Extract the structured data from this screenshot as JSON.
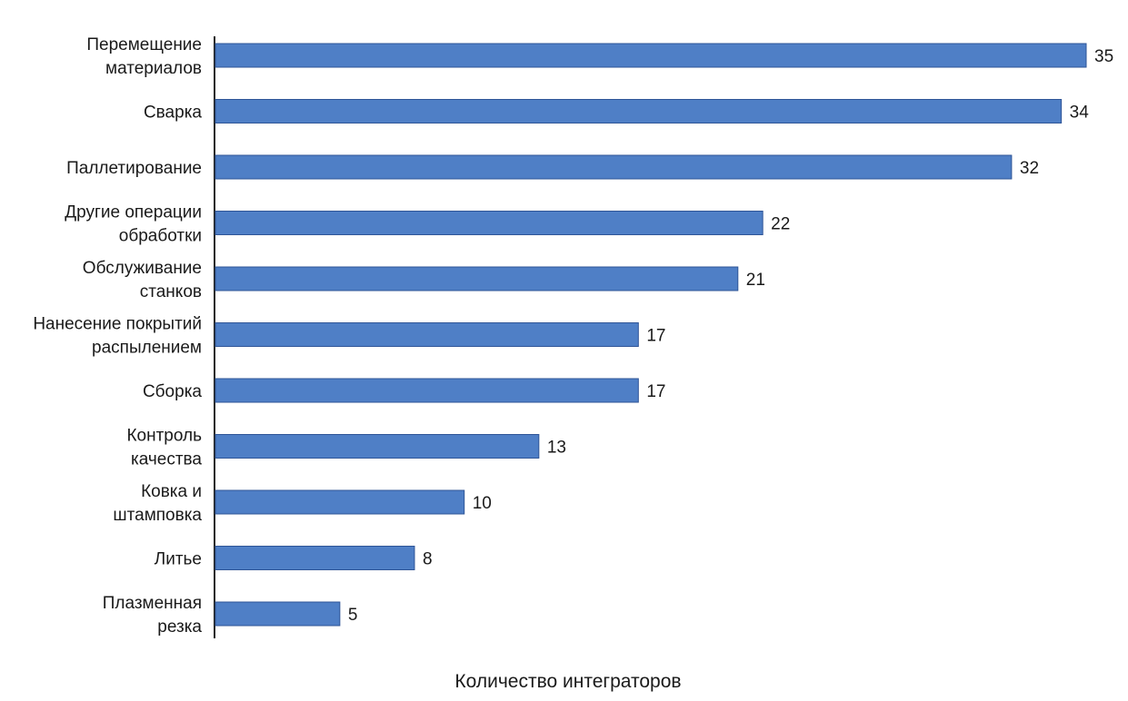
{
  "chart_data": {
    "type": "bar",
    "orientation": "horizontal",
    "categories": [
      [
        "Перемещение",
        "материалов"
      ],
      [
        "Сварка"
      ],
      [
        "Паллетирование"
      ],
      [
        "Другие операции",
        "обработки"
      ],
      [
        "Обслуживание",
        "станков"
      ],
      [
        "Нанесение покрытий",
        "распылением"
      ],
      [
        "Сборка"
      ],
      [
        "Контроль",
        "качества"
      ],
      [
        "Ковка и",
        "штамповка"
      ],
      [
        "Литье"
      ],
      [
        "Плазменная",
        "резка"
      ]
    ],
    "values": [
      35,
      34,
      32,
      22,
      21,
      17,
      17,
      13,
      10,
      8,
      5
    ],
    "xlabel": "Количество интеграторов",
    "ylabel": "",
    "title": "",
    "xlim": [
      0,
      35
    ],
    "grid": false,
    "legend": "none",
    "bar_color": "#4f7fc6",
    "bar_edge_color": "#2f5597"
  }
}
